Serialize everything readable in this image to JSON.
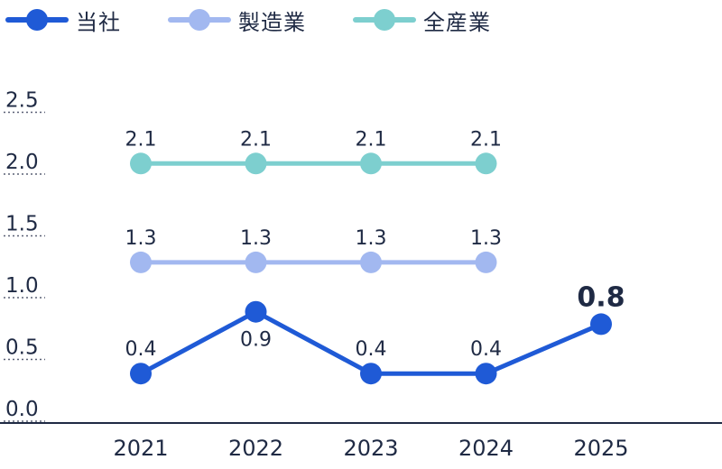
{
  "legend": [
    {
      "label": "当社",
      "color": "#1f5ad6"
    },
    {
      "label": "製造業",
      "color": "#a2b8f0"
    },
    {
      "label": "全産業",
      "color": "#7dcfcf"
    }
  ],
  "chart_data": {
    "type": "line",
    "x": [
      "2021",
      "2022",
      "2023",
      "2024",
      "2025"
    ],
    "ylim": [
      0,
      2.5
    ],
    "yticks": [
      "0.0",
      "0.5",
      "1.0",
      "1.5",
      "2.0",
      "2.5"
    ],
    "grid": "dotted tick marks at left",
    "legend_position": "top-left",
    "series": [
      {
        "name": "当社",
        "color": "#1f5ad6",
        "values": [
          0.4,
          0.9,
          0.4,
          0.4,
          0.8
        ],
        "labels": [
          "0.4",
          "0.9",
          "0.4",
          "0.4",
          "0.8"
        ]
      },
      {
        "name": "製造業",
        "color": "#a2b8f0",
        "values": [
          1.3,
          1.3,
          1.3,
          1.3,
          null
        ],
        "labels": [
          "1.3",
          "1.3",
          "1.3",
          "1.3",
          null
        ]
      },
      {
        "name": "全産業",
        "color": "#7dcfcf",
        "values": [
          2.1,
          2.1,
          2.1,
          2.1,
          null
        ],
        "labels": [
          "2.1",
          "2.1",
          "2.1",
          "2.1",
          null
        ]
      }
    ]
  }
}
